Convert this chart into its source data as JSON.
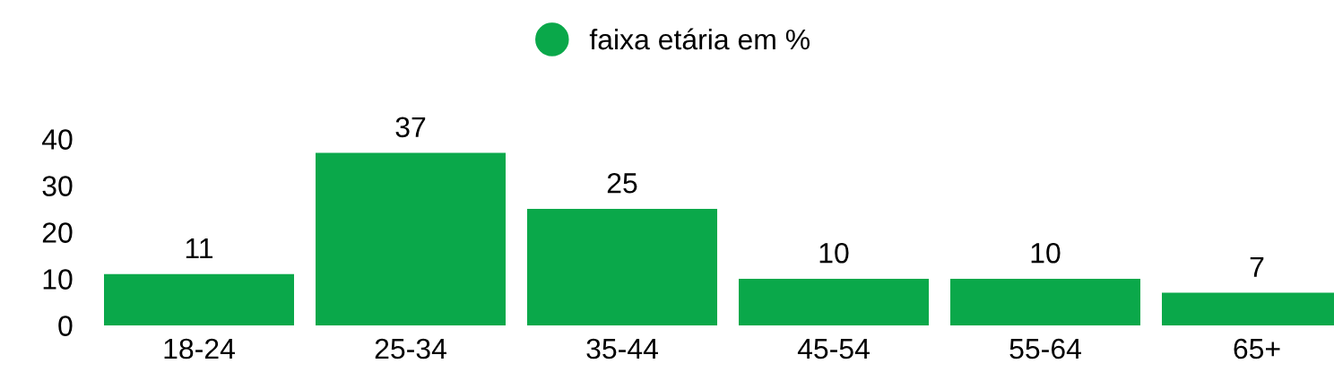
{
  "chart_data": {
    "type": "bar",
    "categories": [
      "18-24",
      "25-34",
      "35-44",
      "45-54",
      "55-64",
      "65+"
    ],
    "series": [
      {
        "name": "faixa etária em %",
        "color": "#0aa84a",
        "values": [
          11,
          37,
          25,
          10,
          10,
          7
        ]
      }
    ],
    "ylim": [
      0,
      40
    ],
    "yticks": [
      0,
      10,
      20,
      30,
      40
    ],
    "data_labels": true,
    "legend": "top",
    "grid": false
  }
}
